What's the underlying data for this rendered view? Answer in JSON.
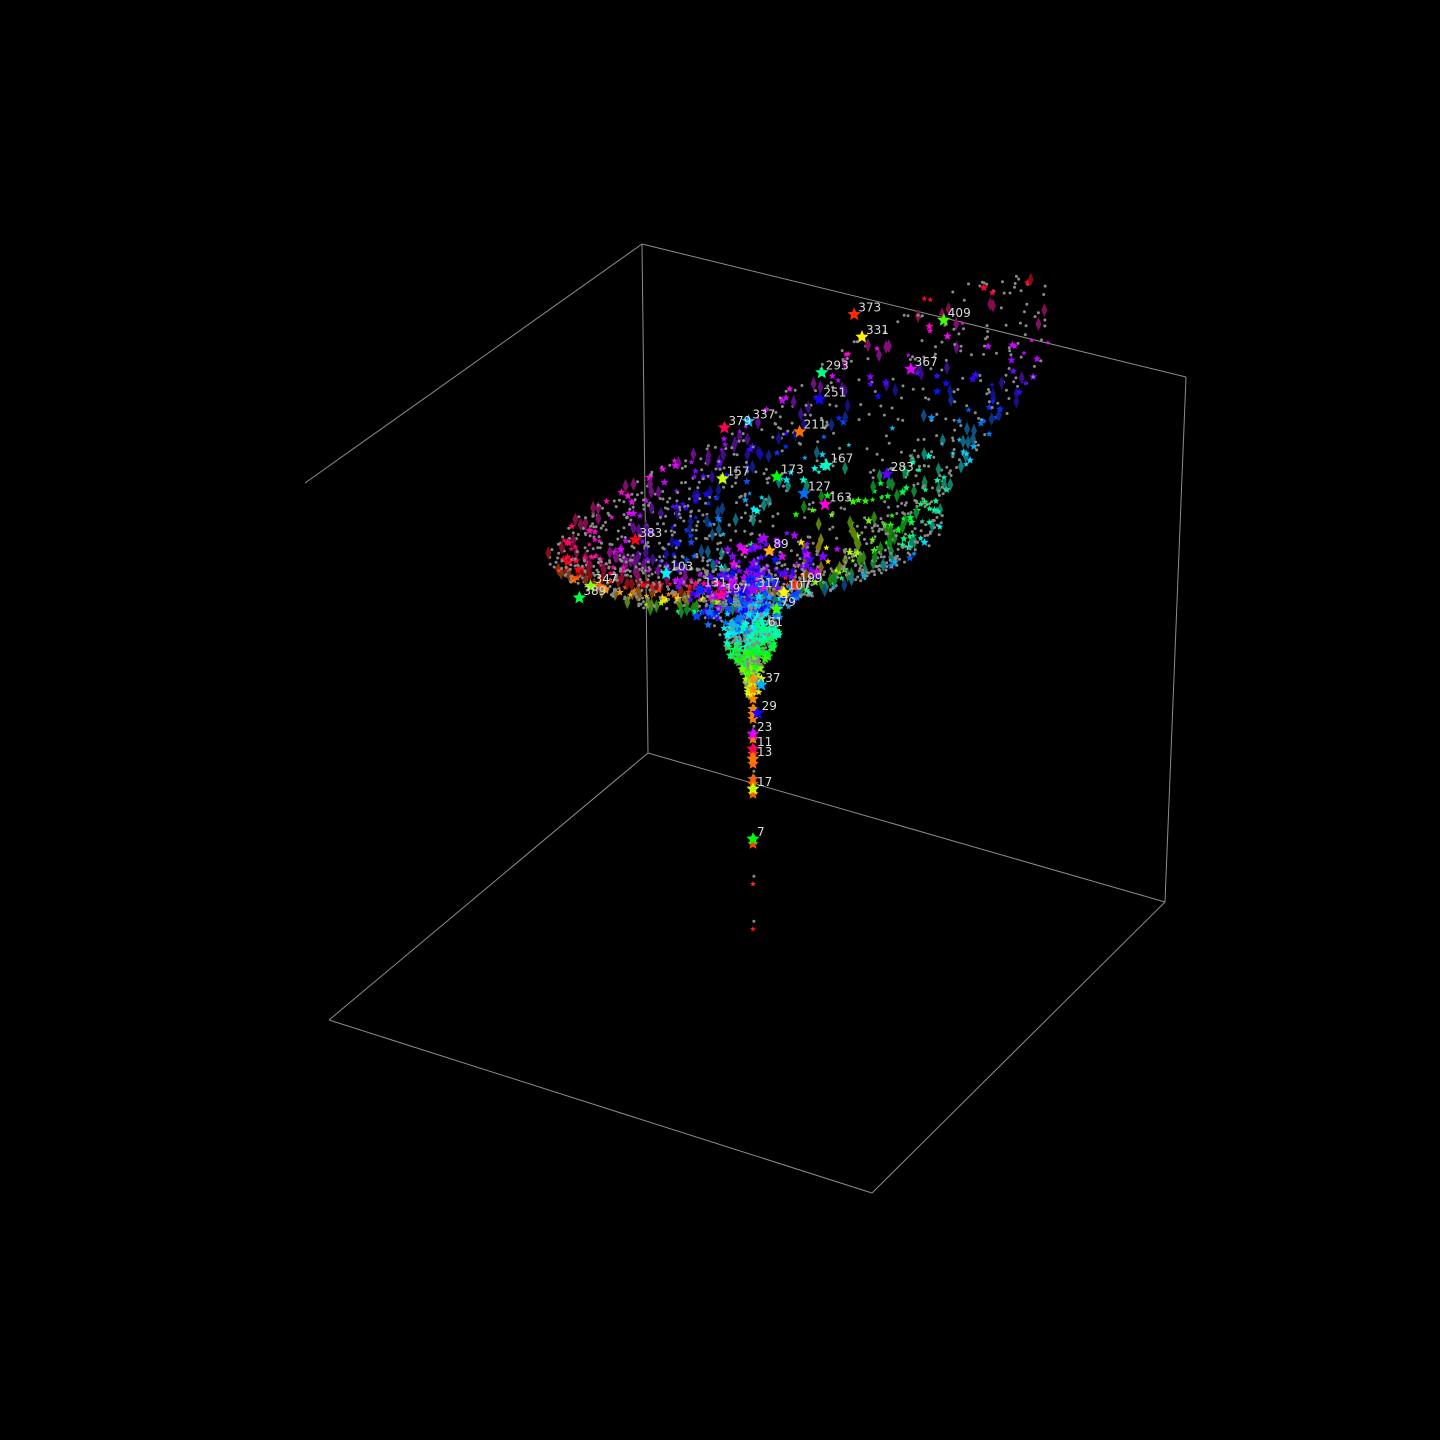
{
  "chart_data": {
    "type": "scatter",
    "dimensions": 3,
    "title": "",
    "xlabel": "",
    "ylabel": "",
    "zlabel": "",
    "background": "#000000",
    "box_color": "#8c8c8c",
    "grid": false,
    "legend": "none",
    "marker_styles": {
      "prime": "star",
      "composite": "dot",
      "highlight": "diamond"
    },
    "structure": {
      "funnel_axis_x": 0,
      "funnel_axis_y": 0,
      "z_range": [
        0,
        10
      ],
      "funnel_total_points": 409,
      "upper_sheet_lobes": 3
    },
    "labeled_points": [
      {
        "label": "373",
        "x": 1.2,
        "y": 4.6,
        "z": 9.8
      },
      {
        "label": "331",
        "x": 1.5,
        "y": 4.0,
        "z": 9.6
      },
      {
        "label": "409",
        "x": 3.3,
        "y": 3.9,
        "z": 9.7
      },
      {
        "label": "293",
        "x": 0.8,
        "y": 3.2,
        "z": 9.4
      },
      {
        "label": "337",
        "x": -0.6,
        "y": 2.3,
        "z": 9.1
      },
      {
        "label": "251",
        "x": 0.9,
        "y": 2.5,
        "z": 9.2
      },
      {
        "label": "367",
        "x": 2.8,
        "y": 2.9,
        "z": 9.3
      },
      {
        "label": "379",
        "x": -1.1,
        "y": 2.2,
        "z": 9.1
      },
      {
        "label": "211",
        "x": 0.6,
        "y": 1.9,
        "z": 8.9
      },
      {
        "label": "157",
        "x": -0.9,
        "y": 1.1,
        "z": 8.6
      },
      {
        "label": "173",
        "x": 0.3,
        "y": 1.0,
        "z": 8.5
      },
      {
        "label": "167",
        "x": 1.4,
        "y": 0.9,
        "z": 8.6
      },
      {
        "label": "127",
        "x": 1.0,
        "y": 0.5,
        "z": 8.3
      },
      {
        "label": "283",
        "x": 2.8,
        "y": 0.5,
        "z": 8.4
      },
      {
        "label": "163",
        "x": 1.5,
        "y": 0.3,
        "z": 8.1
      },
      {
        "label": "383",
        "x": -2.6,
        "y": 0.2,
        "z": 8.1
      },
      {
        "label": "89",
        "x": 0.4,
        "y": -0.2,
        "z": 7.6
      },
      {
        "label": "347",
        "x": -3.4,
        "y": -0.6,
        "z": 7.7
      },
      {
        "label": "389",
        "x": -3.6,
        "y": -0.8,
        "z": 7.6
      },
      {
        "label": "103",
        "x": -1.8,
        "y": -0.4,
        "z": 7.6
      },
      {
        "label": "131",
        "x": -1.0,
        "y": -0.7,
        "z": 7.3
      },
      {
        "label": "317",
        "x": 0.2,
        "y": -0.9,
        "z": 7.2
      },
      {
        "label": "197",
        "x": -0.5,
        "y": -0.9,
        "z": 7.2
      },
      {
        "label": "199",
        "x": 1.1,
        "y": -0.8,
        "z": 7.1
      },
      {
        "label": "107",
        "x": 0.8,
        "y": -0.6,
        "z": 6.9
      },
      {
        "label": "79",
        "x": 0.6,
        "y": -0.4,
        "z": 6.5
      },
      {
        "label": "61",
        "x": 0.3,
        "y": -0.3,
        "z": 6.1
      },
      {
        "label": "37",
        "x": 0.2,
        "y": -0.1,
        "z": 4.9
      },
      {
        "label": "29",
        "x": 0.1,
        "y": 0.0,
        "z": 4.3
      },
      {
        "label": "23",
        "x": 0.0,
        "y": 0.0,
        "z": 3.9
      },
      {
        "label": "11",
        "x": 0.0,
        "y": 0.0,
        "z": 3.6
      },
      {
        "label": "13",
        "x": 0.0,
        "y": 0.0,
        "z": 3.4
      },
      {
        "label": "17",
        "x": 0.0,
        "y": 0.0,
        "z": 2.8
      },
      {
        "label": "7",
        "x": 0.0,
        "y": 0.0,
        "z": 1.8
      }
    ]
  }
}
